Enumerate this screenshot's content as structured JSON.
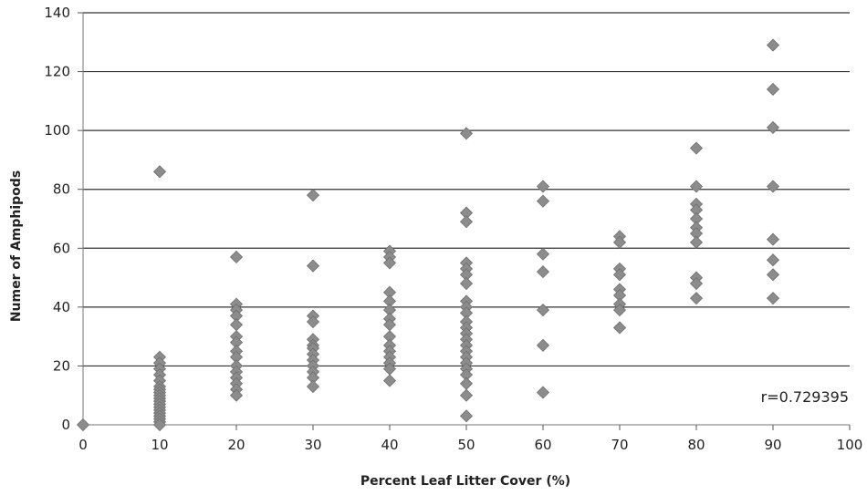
{
  "chart_data": {
    "type": "scatter",
    "title": "",
    "xlabel": "Percent Leaf Litter Cover (%)",
    "ylabel": "Numer of Amphipods",
    "xlim": [
      0,
      100
    ],
    "ylim": [
      0,
      140
    ],
    "xticks": [
      "0",
      "10",
      "20",
      "30",
      "40",
      "50",
      "60",
      "70",
      "80",
      "90",
      "100"
    ],
    "yticks": [
      "0",
      "20",
      "40",
      "60",
      "80",
      "100",
      "120",
      "140"
    ],
    "grid": "horizontal",
    "legend": "none",
    "annotation": "r=0.729395",
    "marker_color": "#8c8c8c",
    "series": [
      {
        "points": [
          [
            0,
            0
          ],
          [
            10,
            86
          ],
          [
            10,
            23
          ],
          [
            10,
            21
          ],
          [
            10,
            19
          ],
          [
            10,
            17
          ],
          [
            10,
            15
          ],
          [
            10,
            13
          ],
          [
            10,
            12
          ],
          [
            10,
            11
          ],
          [
            10,
            10
          ],
          [
            10,
            9
          ],
          [
            10,
            8
          ],
          [
            10,
            7
          ],
          [
            10,
            6
          ],
          [
            10,
            5
          ],
          [
            10,
            4
          ],
          [
            10,
            3
          ],
          [
            10,
            2
          ],
          [
            10,
            1
          ],
          [
            10,
            0
          ],
          [
            20,
            57
          ],
          [
            20,
            41
          ],
          [
            20,
            39
          ],
          [
            20,
            37
          ],
          [
            20,
            34
          ],
          [
            20,
            30
          ],
          [
            20,
            28
          ],
          [
            20,
            25
          ],
          [
            20,
            23
          ],
          [
            20,
            20
          ],
          [
            20,
            18
          ],
          [
            20,
            16
          ],
          [
            20,
            14
          ],
          [
            20,
            12
          ],
          [
            20,
            10
          ],
          [
            30,
            78
          ],
          [
            30,
            54
          ],
          [
            30,
            37
          ],
          [
            30,
            35
          ],
          [
            30,
            29
          ],
          [
            30,
            27
          ],
          [
            30,
            26
          ],
          [
            30,
            24
          ],
          [
            30,
            22
          ],
          [
            30,
            20
          ],
          [
            30,
            18
          ],
          [
            30,
            16
          ],
          [
            30,
            13
          ],
          [
            40,
            59
          ],
          [
            40,
            57
          ],
          [
            40,
            55
          ],
          [
            40,
            45
          ],
          [
            40,
            42
          ],
          [
            40,
            39
          ],
          [
            40,
            36
          ],
          [
            40,
            34
          ],
          [
            40,
            30
          ],
          [
            40,
            27
          ],
          [
            40,
            25
          ],
          [
            40,
            23
          ],
          [
            40,
            21
          ],
          [
            40,
            19
          ],
          [
            40,
            15
          ],
          [
            50,
            99
          ],
          [
            50,
            72
          ],
          [
            50,
            69
          ],
          [
            50,
            55
          ],
          [
            50,
            53
          ],
          [
            50,
            51
          ],
          [
            50,
            48
          ],
          [
            50,
            42
          ],
          [
            50,
            40
          ],
          [
            50,
            38
          ],
          [
            50,
            35
          ],
          [
            50,
            33
          ],
          [
            50,
            31
          ],
          [
            50,
            29
          ],
          [
            50,
            27
          ],
          [
            50,
            25
          ],
          [
            50,
            23
          ],
          [
            50,
            21
          ],
          [
            50,
            19
          ],
          [
            50,
            17
          ],
          [
            50,
            14
          ],
          [
            50,
            10
          ],
          [
            50,
            3
          ],
          [
            60,
            81
          ],
          [
            60,
            76
          ],
          [
            60,
            58
          ],
          [
            60,
            52
          ],
          [
            60,
            39
          ],
          [
            60,
            27
          ],
          [
            60,
            11
          ],
          [
            70,
            64
          ],
          [
            70,
            62
          ],
          [
            70,
            53
          ],
          [
            70,
            51
          ],
          [
            70,
            46
          ],
          [
            70,
            44
          ],
          [
            70,
            41
          ],
          [
            70,
            39
          ],
          [
            70,
            33
          ],
          [
            80,
            94
          ],
          [
            80,
            81
          ],
          [
            80,
            75
          ],
          [
            80,
            73
          ],
          [
            80,
            70
          ],
          [
            80,
            67
          ],
          [
            80,
            65
          ],
          [
            80,
            62
          ],
          [
            80,
            50
          ],
          [
            80,
            48
          ],
          [
            80,
            43
          ],
          [
            90,
            129
          ],
          [
            90,
            114
          ],
          [
            90,
            101
          ],
          [
            90,
            81
          ],
          [
            90,
            63
          ],
          [
            90,
            56
          ],
          [
            90,
            51
          ],
          [
            90,
            43
          ]
        ]
      }
    ]
  }
}
